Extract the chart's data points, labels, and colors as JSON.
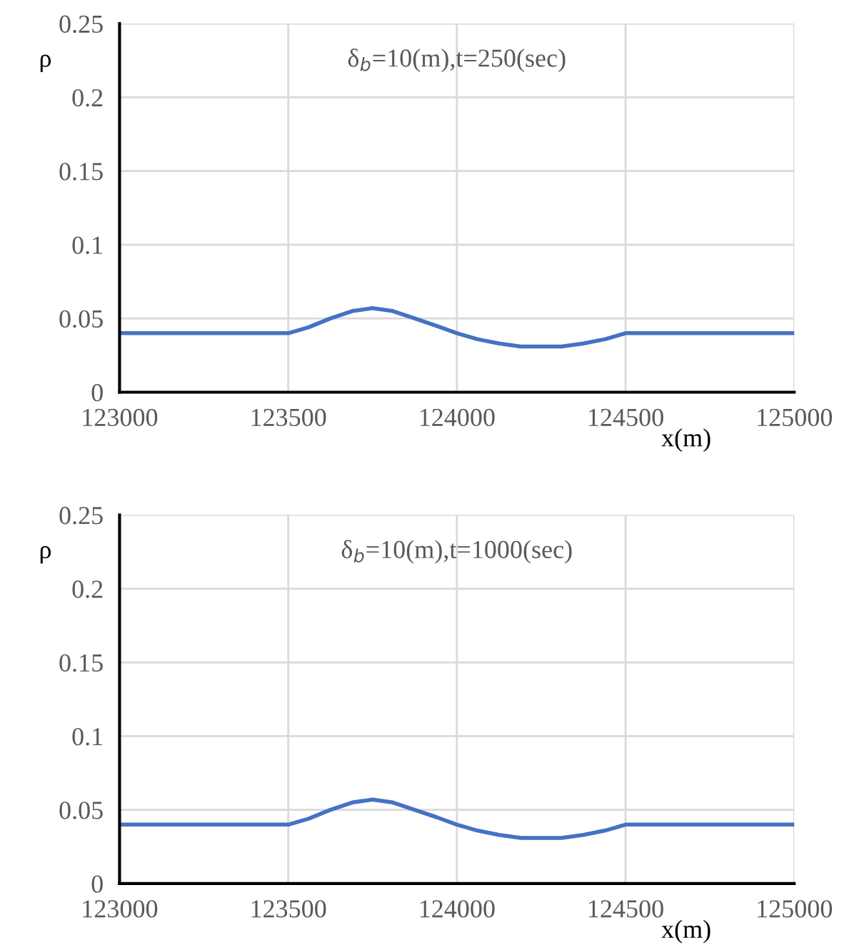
{
  "chart_data": [
    {
      "type": "line",
      "title": "δ$_{b}$=10(m),t=250(sec)",
      "xlabel": "x(m)",
      "ylabel": "ρ",
      "series": [
        {
          "color": "#4472c4",
          "x": [
            123000,
            123500,
            123560,
            123625,
            123690,
            123750,
            123810,
            123875,
            123940,
            124000,
            124060,
            124125,
            124190,
            124250,
            124310,
            124375,
            124440,
            124500,
            125000
          ],
          "values": [
            0.04,
            0.04,
            0.044,
            0.05,
            0.055,
            0.057,
            0.055,
            0.05,
            0.045,
            0.04,
            0.036,
            0.033,
            0.031,
            0.031,
            0.031,
            0.033,
            0.036,
            0.04,
            0.04
          ]
        }
      ],
      "xlim": [
        123000,
        125000
      ],
      "xticks": [
        123000,
        123500,
        124000,
        124500,
        125000
      ],
      "ylim": [
        0,
        0.25
      ],
      "yticks": [
        0,
        0.05,
        0.1,
        0.15,
        0.2,
        0.25
      ],
      "grid": true,
      "marker": "none",
      "line_style": "solid"
    },
    {
      "type": "line",
      "title": "δ$_{b}$=10(m),t=1000(sec)",
      "xlabel": "x(m)",
      "ylabel": "ρ",
      "series": [
        {
          "color": "#4472c4",
          "x": [
            123000,
            123500,
            123560,
            123625,
            123690,
            123750,
            123810,
            123875,
            123940,
            124000,
            124060,
            124125,
            124190,
            124250,
            124310,
            124375,
            124440,
            124500,
            125000
          ],
          "values": [
            0.04,
            0.04,
            0.044,
            0.05,
            0.055,
            0.057,
            0.055,
            0.05,
            0.045,
            0.04,
            0.036,
            0.033,
            0.031,
            0.031,
            0.031,
            0.033,
            0.036,
            0.04,
            0.04
          ]
        }
      ],
      "xlim": [
        123000,
        125000
      ],
      "xticks": [
        123000,
        123500,
        124000,
        124500,
        125000
      ],
      "ylim": [
        0,
        0.25
      ],
      "yticks": [
        0,
        0.05,
        0.1,
        0.15,
        0.2,
        0.25
      ],
      "grid": true,
      "marker": "none",
      "line_style": "solid"
    }
  ]
}
